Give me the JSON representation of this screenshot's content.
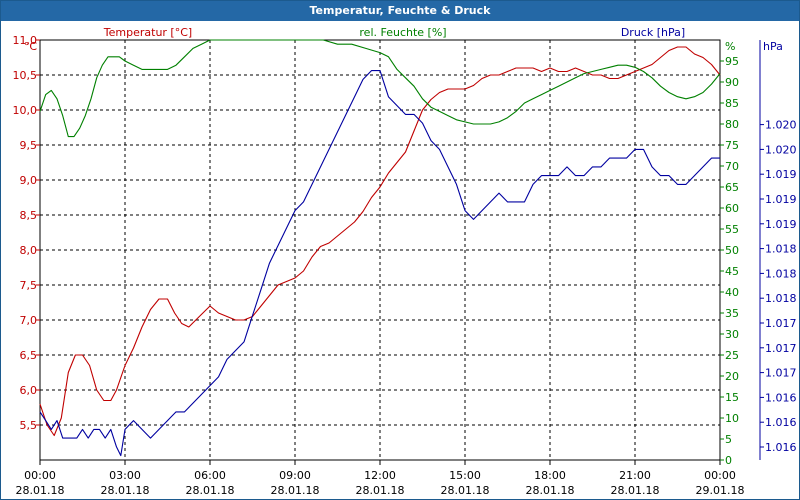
{
  "title": "Temperatur, Feuchte & Druck",
  "colors": {
    "temperature": "#c00000",
    "humidity": "#008000",
    "pressure": "#0000a0",
    "titlebar": "#2468a6"
  },
  "chart_data": {
    "type": "line",
    "title": "Temperatur, Feuchte & Druck",
    "grid": true,
    "x_ticks": [
      {
        "time": "00:00",
        "date": "28.01.18"
      },
      {
        "time": "03:00",
        "date": "28.01.18"
      },
      {
        "time": "06:00",
        "date": "28.01.18"
      },
      {
        "time": "09:00",
        "date": "28.01.18"
      },
      {
        "time": "12:00",
        "date": "28.01.18"
      },
      {
        "time": "15:00",
        "date": "28.01.18"
      },
      {
        "time": "18:00",
        "date": "28.01.18"
      },
      {
        "time": "21:00",
        "date": "28.01.18"
      },
      {
        "time": "00:00",
        "date": "29.01.18"
      }
    ],
    "axes": {
      "temperature": {
        "label": "Temperatur [°C]",
        "unit": "°C",
        "range": [
          5.0,
          11.0
        ],
        "ticks": [
          "5,5",
          "6,0",
          "6,5",
          "7,0",
          "7,5",
          "8,0",
          "8,5",
          "9,0",
          "9,5",
          "10,0",
          "10,5",
          "11,0"
        ]
      },
      "humidity": {
        "label": "rel. Feuchte [%]",
        "unit": "%",
        "range": [
          0,
          100
        ],
        "ticks": [
          "0",
          "5",
          "10",
          "15",
          "20",
          "25",
          "30",
          "35",
          "40",
          "45",
          "50",
          "55",
          "60",
          "65",
          "70",
          "75",
          "80",
          "85",
          "90",
          "95"
        ]
      },
      "pressure": {
        "label": "Druck [hPa]",
        "unit": "hPa",
        "range": [
          1015.6,
          1020.4
        ],
        "ticks": [
          "1.016",
          "1.016",
          "1.016",
          "1.017",
          "1.017",
          "1.017",
          "1.018",
          "1.018",
          "1.018",
          "1.019",
          "1.019",
          "1.019",
          "1.020",
          "1.020"
        ]
      }
    },
    "series": [
      {
        "name": "Temperatur [°C]",
        "axis": "temperature",
        "points": [
          [
            0,
            5.8
          ],
          [
            0.25,
            5.5
          ],
          [
            0.5,
            5.35
          ],
          [
            0.75,
            5.6
          ],
          [
            1,
            6.25
          ],
          [
            1.25,
            6.5
          ],
          [
            1.5,
            6.5
          ],
          [
            1.75,
            6.35
          ],
          [
            2,
            6.0
          ],
          [
            2.25,
            5.85
          ],
          [
            2.5,
            5.85
          ],
          [
            2.7,
            6.0
          ],
          [
            3,
            6.35
          ],
          [
            3.3,
            6.6
          ],
          [
            3.6,
            6.9
          ],
          [
            3.9,
            7.15
          ],
          [
            4.2,
            7.3
          ],
          [
            4.5,
            7.3
          ],
          [
            4.75,
            7.1
          ],
          [
            5,
            6.95
          ],
          [
            5.25,
            6.9
          ],
          [
            5.5,
            7.0
          ],
          [
            6,
            7.2
          ],
          [
            6.3,
            7.1
          ],
          [
            6.6,
            7.05
          ],
          [
            6.9,
            7.0
          ],
          [
            7.2,
            7.0
          ],
          [
            7.5,
            7.05
          ],
          [
            7.8,
            7.2
          ],
          [
            8.1,
            7.35
          ],
          [
            8.4,
            7.5
          ],
          [
            8.7,
            7.55
          ],
          [
            9,
            7.6
          ],
          [
            9.3,
            7.7
          ],
          [
            9.6,
            7.9
          ],
          [
            9.9,
            8.05
          ],
          [
            10.2,
            8.1
          ],
          [
            10.5,
            8.2
          ],
          [
            10.8,
            8.3
          ],
          [
            11.1,
            8.4
          ],
          [
            11.4,
            8.55
          ],
          [
            11.7,
            8.75
          ],
          [
            12,
            8.9
          ],
          [
            12.3,
            9.1
          ],
          [
            12.6,
            9.25
          ],
          [
            12.9,
            9.4
          ],
          [
            13.2,
            9.7
          ],
          [
            13.5,
            10.0
          ],
          [
            13.8,
            10.15
          ],
          [
            14.1,
            10.25
          ],
          [
            14.4,
            10.3
          ],
          [
            14.7,
            10.3
          ],
          [
            15,
            10.3
          ],
          [
            15.3,
            10.35
          ],
          [
            15.6,
            10.45
          ],
          [
            15.9,
            10.5
          ],
          [
            16.2,
            10.5
          ],
          [
            16.5,
            10.55
          ],
          [
            16.8,
            10.6
          ],
          [
            17.1,
            10.6
          ],
          [
            17.4,
            10.6
          ],
          [
            17.7,
            10.55
          ],
          [
            18,
            10.6
          ],
          [
            18.3,
            10.55
          ],
          [
            18.6,
            10.55
          ],
          [
            18.9,
            10.6
          ],
          [
            19.2,
            10.55
          ],
          [
            19.5,
            10.5
          ],
          [
            19.8,
            10.5
          ],
          [
            20.1,
            10.45
          ],
          [
            20.4,
            10.45
          ],
          [
            20.7,
            10.5
          ],
          [
            21,
            10.55
          ],
          [
            21.3,
            10.6
          ],
          [
            21.6,
            10.65
          ],
          [
            21.9,
            10.75
          ],
          [
            22.2,
            10.85
          ],
          [
            22.5,
            10.9
          ],
          [
            22.8,
            10.9
          ],
          [
            23.1,
            10.8
          ],
          [
            23.4,
            10.75
          ],
          [
            23.7,
            10.65
          ],
          [
            24,
            10.5
          ]
        ]
      },
      {
        "name": "rel. Feuchte [%]",
        "axis": "humidity",
        "points": [
          [
            0,
            83
          ],
          [
            0.2,
            87
          ],
          [
            0.4,
            88
          ],
          [
            0.6,
            86
          ],
          [
            0.8,
            82
          ],
          [
            1,
            77
          ],
          [
            1.2,
            77
          ],
          [
            1.4,
            79
          ],
          [
            1.6,
            82
          ],
          [
            1.8,
            86
          ],
          [
            2,
            91
          ],
          [
            2.2,
            94
          ],
          [
            2.4,
            96
          ],
          [
            2.6,
            96
          ],
          [
            2.8,
            96
          ],
          [
            3,
            95
          ],
          [
            3.3,
            94
          ],
          [
            3.6,
            93
          ],
          [
            3.9,
            93
          ],
          [
            4.2,
            93
          ],
          [
            4.5,
            93
          ],
          [
            4.8,
            94
          ],
          [
            5.1,
            96
          ],
          [
            5.4,
            98
          ],
          [
            5.7,
            99
          ],
          [
            6,
            100
          ],
          [
            6.3,
            100
          ],
          [
            6.6,
            100
          ],
          [
            6.9,
            100
          ],
          [
            7.2,
            100
          ],
          [
            8,
            100
          ],
          [
            9,
            100
          ],
          [
            10,
            100
          ],
          [
            10.5,
            99
          ],
          [
            11,
            99
          ],
          [
            11.5,
            98
          ],
          [
            12,
            97
          ],
          [
            12.3,
            96
          ],
          [
            12.6,
            93
          ],
          [
            12.9,
            91
          ],
          [
            13.2,
            89
          ],
          [
            13.5,
            86
          ],
          [
            13.8,
            84
          ],
          [
            14.1,
            83
          ],
          [
            14.4,
            82
          ],
          [
            14.7,
            81
          ],
          [
            15,
            80.5
          ],
          [
            15.3,
            80
          ],
          [
            15.6,
            80
          ],
          [
            15.9,
            80
          ],
          [
            16.2,
            80.5
          ],
          [
            16.5,
            81.5
          ],
          [
            16.8,
            83
          ],
          [
            17.1,
            85
          ],
          [
            17.4,
            86
          ],
          [
            17.7,
            87
          ],
          [
            18,
            88
          ],
          [
            18.3,
            89
          ],
          [
            18.6,
            90
          ],
          [
            18.9,
            91
          ],
          [
            19.2,
            92
          ],
          [
            19.5,
            92.5
          ],
          [
            19.8,
            93
          ],
          [
            20.1,
            93.5
          ],
          [
            20.4,
            94
          ],
          [
            20.7,
            94
          ],
          [
            21,
            93.5
          ],
          [
            21.3,
            92.5
          ],
          [
            21.6,
            91
          ],
          [
            21.9,
            89
          ],
          [
            22.2,
            87.5
          ],
          [
            22.5,
            86.5
          ],
          [
            22.8,
            86
          ],
          [
            23.1,
            86.5
          ],
          [
            23.4,
            87.5
          ],
          [
            23.7,
            89.5
          ],
          [
            24,
            92
          ]
        ]
      },
      {
        "name": "Druck [hPa]",
        "axis": "pressure",
        "points": [
          [
            0,
            1016.15
          ],
          [
            0.2,
            1016.05
          ],
          [
            0.4,
            1015.95
          ],
          [
            0.6,
            1016.05
          ],
          [
            0.8,
            1015.85
          ],
          [
            1,
            1015.85
          ],
          [
            1.3,
            1015.85
          ],
          [
            1.5,
            1015.95
          ],
          [
            1.7,
            1015.85
          ],
          [
            1.9,
            1015.95
          ],
          [
            2.1,
            1015.95
          ],
          [
            2.3,
            1015.85
          ],
          [
            2.5,
            1015.95
          ],
          [
            2.7,
            1015.75
          ],
          [
            2.85,
            1015.65
          ],
          [
            3,
            1015.95
          ],
          [
            3.3,
            1016.05
          ],
          [
            3.6,
            1015.95
          ],
          [
            3.9,
            1015.85
          ],
          [
            4.2,
            1015.95
          ],
          [
            4.5,
            1016.05
          ],
          [
            4.8,
            1016.15
          ],
          [
            5.1,
            1016.15
          ],
          [
            5.4,
            1016.25
          ],
          [
            5.7,
            1016.35
          ],
          [
            6,
            1016.45
          ],
          [
            6.3,
            1016.55
          ],
          [
            6.6,
            1016.75
          ],
          [
            6.9,
            1016.85
          ],
          [
            7.2,
            1016.95
          ],
          [
            7.5,
            1017.25
          ],
          [
            7.8,
            1017.55
          ],
          [
            8.1,
            1017.85
          ],
          [
            8.4,
            1018.05
          ],
          [
            8.7,
            1018.25
          ],
          [
            9,
            1018.45
          ],
          [
            9.3,
            1018.55
          ],
          [
            9.6,
            1018.75
          ],
          [
            9.9,
            1018.95
          ],
          [
            10.2,
            1019.15
          ],
          [
            10.5,
            1019.35
          ],
          [
            10.8,
            1019.55
          ],
          [
            11.1,
            1019.75
          ],
          [
            11.4,
            1019.95
          ],
          [
            11.7,
            1020.05
          ],
          [
            12,
            1020.05
          ],
          [
            12.3,
            1019.75
          ],
          [
            12.6,
            1019.65
          ],
          [
            12.9,
            1019.55
          ],
          [
            13.2,
            1019.55
          ],
          [
            13.5,
            1019.45
          ],
          [
            13.8,
            1019.25
          ],
          [
            14.1,
            1019.15
          ],
          [
            14.4,
            1018.95
          ],
          [
            14.7,
            1018.75
          ],
          [
            15,
            1018.45
          ],
          [
            15.3,
            1018.35
          ],
          [
            15.6,
            1018.45
          ],
          [
            15.9,
            1018.55
          ],
          [
            16.2,
            1018.65
          ],
          [
            16.5,
            1018.55
          ],
          [
            16.8,
            1018.55
          ],
          [
            17.1,
            1018.55
          ],
          [
            17.4,
            1018.75
          ],
          [
            17.7,
            1018.85
          ],
          [
            18,
            1018.85
          ],
          [
            18.3,
            1018.85
          ],
          [
            18.6,
            1018.95
          ],
          [
            18.9,
            1018.85
          ],
          [
            19.2,
            1018.85
          ],
          [
            19.5,
            1018.95
          ],
          [
            19.8,
            1018.95
          ],
          [
            20.1,
            1019.05
          ],
          [
            20.4,
            1019.05
          ],
          [
            20.7,
            1019.05
          ],
          [
            21,
            1019.15
          ],
          [
            21.3,
            1019.15
          ],
          [
            21.6,
            1018.95
          ],
          [
            21.9,
            1018.85
          ],
          [
            22.2,
            1018.85
          ],
          [
            22.5,
            1018.75
          ],
          [
            22.8,
            1018.75
          ],
          [
            23.1,
            1018.85
          ],
          [
            23.4,
            1018.95
          ],
          [
            23.7,
            1019.05
          ],
          [
            24,
            1019.05
          ]
        ]
      }
    ]
  }
}
